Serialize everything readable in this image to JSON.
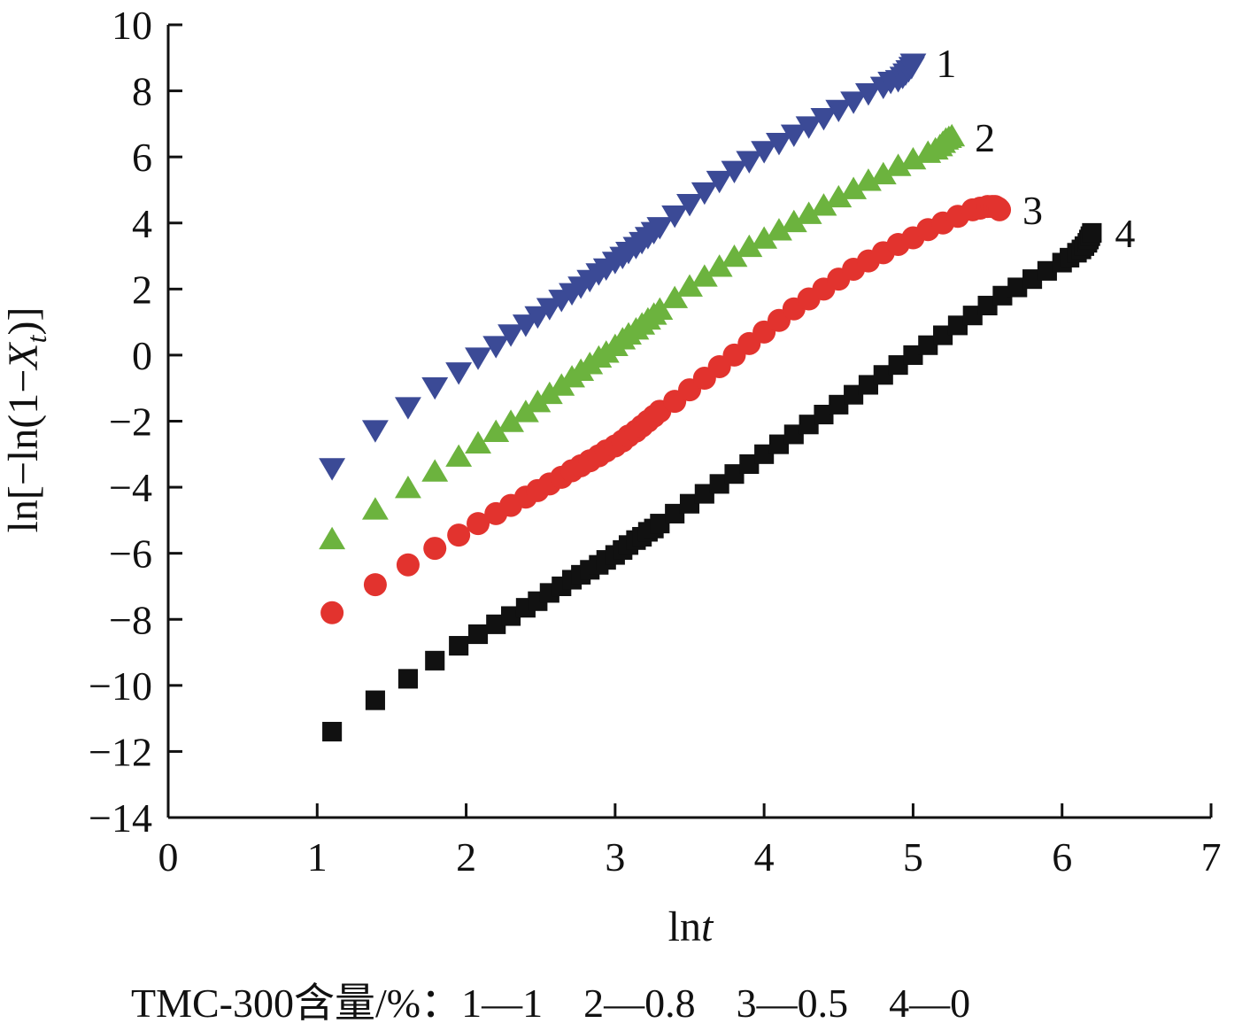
{
  "chart_data": {
    "type": "scatter",
    "xlabel": {
      "prefix": "ln",
      "italic": "t"
    },
    "ylabel": {
      "before_italic": "ln[−ln(1−",
      "italic": "X",
      "subscript": "t",
      "after": ")]"
    },
    "xlim": [
      0,
      7
    ],
    "ylim": [
      -14,
      10
    ],
    "xticks": [
      0,
      1,
      2,
      3,
      4,
      5,
      6,
      7
    ],
    "yticks": [
      10,
      8,
      6,
      4,
      2,
      0,
      -2,
      -4,
      -6,
      -8,
      -10,
      -12,
      -14
    ],
    "ytick_labels": [
      "10",
      "8",
      "6",
      "4",
      "2",
      "0",
      "−2",
      "−4",
      "−6",
      "−8",
      "−10",
      "−12",
      "−14"
    ],
    "grid": false,
    "legend_caption": "TMC-300含量/%：1—1　2—0.8　3—0.5　4—0",
    "colors": {
      "series1": "#3b4a96",
      "series2": "#6cb33e",
      "series3": "#e2332e",
      "series4": "#111111"
    },
    "series": [
      {
        "name": "1",
        "marker": "triangle-down",
        "color": "#3b4a96",
        "x": [
          1.1,
          1.39,
          1.61,
          1.79,
          1.95,
          2.08,
          2.2,
          2.3,
          2.4,
          2.48,
          2.56,
          2.64,
          2.71,
          2.77,
          2.83,
          2.89,
          2.94,
          3.0,
          3.05,
          3.09,
          3.14,
          3.18,
          3.22,
          3.26,
          3.3,
          3.4,
          3.5,
          3.6,
          3.7,
          3.8,
          3.9,
          4.0,
          4.1,
          4.2,
          4.3,
          4.4,
          4.5,
          4.6,
          4.7,
          4.8,
          4.85,
          4.9,
          4.93,
          4.95,
          4.97,
          4.99,
          5.0
        ],
        "y": [
          -3.4,
          -2.25,
          -1.55,
          -0.95,
          -0.5,
          -0.05,
          0.3,
          0.65,
          0.95,
          1.2,
          1.45,
          1.7,
          1.9,
          2.1,
          2.3,
          2.5,
          2.65,
          2.85,
          3.0,
          3.15,
          3.3,
          3.45,
          3.6,
          3.75,
          3.9,
          4.25,
          4.6,
          4.95,
          5.3,
          5.6,
          5.9,
          6.2,
          6.45,
          6.7,
          6.95,
          7.2,
          7.45,
          7.7,
          7.95,
          8.15,
          8.3,
          8.35,
          8.45,
          8.55,
          8.65,
          8.75,
          8.85
        ]
      },
      {
        "name": "2",
        "marker": "triangle-up",
        "color": "#6cb33e",
        "x": [
          1.1,
          1.39,
          1.61,
          1.79,
          1.95,
          2.08,
          2.2,
          2.3,
          2.4,
          2.48,
          2.56,
          2.64,
          2.71,
          2.77,
          2.83,
          2.89,
          2.94,
          3.0,
          3.05,
          3.09,
          3.14,
          3.18,
          3.22,
          3.26,
          3.3,
          3.4,
          3.5,
          3.6,
          3.7,
          3.8,
          3.9,
          4.0,
          4.1,
          4.2,
          4.3,
          4.4,
          4.5,
          4.6,
          4.7,
          4.8,
          4.9,
          5.0,
          5.1,
          5.15,
          5.18,
          5.2,
          5.22,
          5.24,
          5.26
        ],
        "y": [
          -5.6,
          -4.7,
          -4.05,
          -3.55,
          -3.1,
          -2.7,
          -2.35,
          -2.05,
          -1.75,
          -1.45,
          -1.2,
          -0.95,
          -0.7,
          -0.5,
          -0.3,
          -0.1,
          0.05,
          0.25,
          0.45,
          0.6,
          0.75,
          0.9,
          1.05,
          1.2,
          1.35,
          1.7,
          2.05,
          2.35,
          2.65,
          2.95,
          3.25,
          3.5,
          3.75,
          4.0,
          4.25,
          4.5,
          4.75,
          5.0,
          5.25,
          5.45,
          5.7,
          5.9,
          6.1,
          6.2,
          6.3,
          6.4,
          6.5,
          6.55,
          6.6
        ]
      },
      {
        "name": "3",
        "marker": "circle",
        "color": "#e2332e",
        "x": [
          1.1,
          1.39,
          1.61,
          1.79,
          1.95,
          2.08,
          2.2,
          2.3,
          2.4,
          2.48,
          2.56,
          2.64,
          2.71,
          2.77,
          2.83,
          2.89,
          2.94,
          3.0,
          3.05,
          3.09,
          3.14,
          3.18,
          3.22,
          3.26,
          3.3,
          3.4,
          3.5,
          3.6,
          3.7,
          3.8,
          3.9,
          4.0,
          4.1,
          4.2,
          4.3,
          4.4,
          4.5,
          4.6,
          4.7,
          4.8,
          4.9,
          5.0,
          5.1,
          5.2,
          5.3,
          5.4,
          5.45,
          5.5,
          5.53,
          5.55,
          5.57,
          5.58
        ],
        "y": [
          -7.8,
          -6.95,
          -6.35,
          -5.85,
          -5.45,
          -5.1,
          -4.8,
          -4.55,
          -4.3,
          -4.1,
          -3.9,
          -3.7,
          -3.5,
          -3.35,
          -3.2,
          -3.05,
          -2.9,
          -2.75,
          -2.6,
          -2.45,
          -2.3,
          -2.15,
          -2.0,
          -1.85,
          -1.7,
          -1.4,
          -1.05,
          -0.7,
          -0.35,
          0.0,
          0.35,
          0.7,
          1.05,
          1.4,
          1.7,
          2.0,
          2.3,
          2.6,
          2.85,
          3.1,
          3.35,
          3.55,
          3.8,
          4.0,
          4.2,
          4.4,
          4.45,
          4.5,
          4.5,
          4.5,
          4.45,
          4.4
        ]
      },
      {
        "name": "4",
        "marker": "square",
        "color": "#111111",
        "x": [
          1.1,
          1.39,
          1.61,
          1.79,
          1.95,
          2.08,
          2.2,
          2.3,
          2.4,
          2.48,
          2.56,
          2.64,
          2.71,
          2.77,
          2.83,
          2.89,
          2.94,
          3.0,
          3.05,
          3.09,
          3.14,
          3.18,
          3.22,
          3.26,
          3.3,
          3.4,
          3.5,
          3.6,
          3.7,
          3.8,
          3.9,
          4.0,
          4.1,
          4.2,
          4.3,
          4.4,
          4.5,
          4.6,
          4.7,
          4.8,
          4.9,
          5.0,
          5.1,
          5.2,
          5.3,
          5.4,
          5.5,
          5.6,
          5.7,
          5.8,
          5.9,
          6.0,
          6.05,
          6.1,
          6.13,
          6.15,
          6.17,
          6.18,
          6.19,
          6.2
        ],
        "y": [
          -11.4,
          -10.45,
          -9.8,
          -9.25,
          -8.8,
          -8.45,
          -8.15,
          -7.9,
          -7.65,
          -7.45,
          -7.2,
          -7.0,
          -6.8,
          -6.65,
          -6.5,
          -6.35,
          -6.2,
          -6.05,
          -5.9,
          -5.75,
          -5.6,
          -5.5,
          -5.35,
          -5.25,
          -5.1,
          -4.8,
          -4.5,
          -4.2,
          -3.9,
          -3.6,
          -3.3,
          -3.0,
          -2.7,
          -2.4,
          -2.1,
          -1.8,
          -1.5,
          -1.2,
          -0.9,
          -0.6,
          -0.3,
          0.0,
          0.3,
          0.6,
          0.9,
          1.2,
          1.5,
          1.8,
          2.05,
          2.3,
          2.55,
          2.8,
          2.95,
          3.1,
          3.2,
          3.3,
          3.4,
          3.5,
          3.6,
          3.7
        ]
      }
    ]
  }
}
